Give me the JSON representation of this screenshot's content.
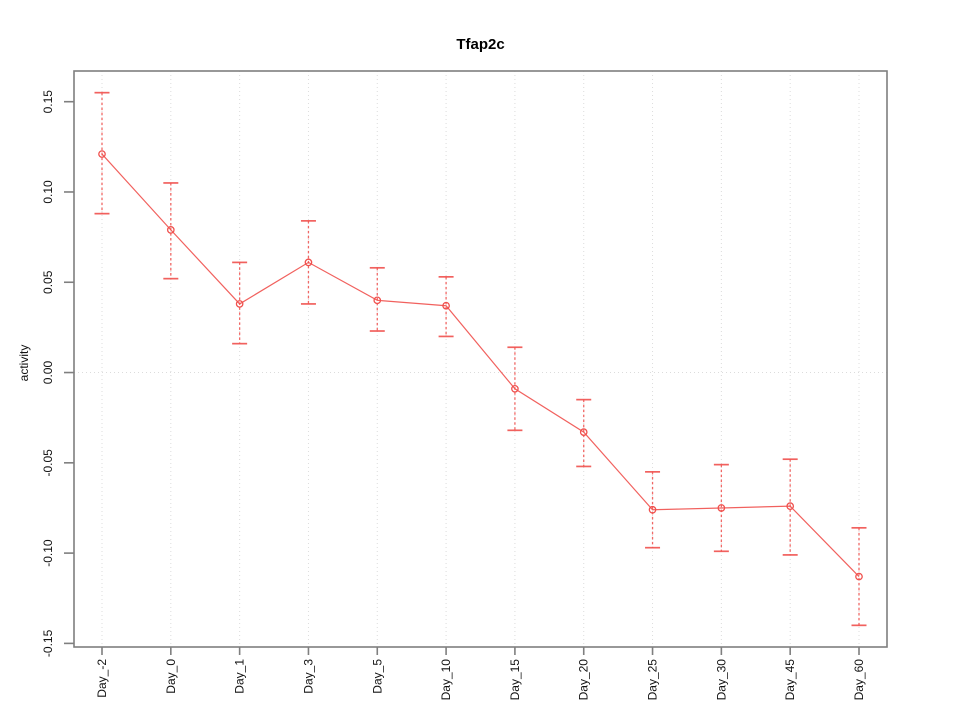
{
  "chart_data": {
    "type": "line",
    "title": "Tfap2c",
    "xlabel": "",
    "ylabel": "activity",
    "categories": [
      "Day_-2",
      "Day_0",
      "Day_1",
      "Day_3",
      "Day_5",
      "Day_10",
      "Day_15",
      "Day_20",
      "Day_25",
      "Day_30",
      "Day_45",
      "Day_60"
    ],
    "series": [
      {
        "values": [
          0.121,
          0.079,
          0.038,
          0.061,
          0.04,
          0.037,
          -0.009,
          -0.033,
          -0.076,
          -0.075,
          -0.074,
          -0.113
        ],
        "error_high": [
          0.155,
          0.105,
          0.061,
          0.084,
          0.058,
          0.053,
          0.014,
          -0.015,
          -0.055,
          -0.051,
          -0.048,
          -0.086
        ],
        "error_low": [
          0.088,
          0.052,
          0.016,
          0.038,
          0.023,
          0.02,
          -0.032,
          -0.052,
          -0.097,
          -0.099,
          -0.101,
          -0.14
        ]
      }
    ],
    "marker": "open-circle",
    "error_bar_style": "dashed-stem-with-caps",
    "ylim": [
      -0.152,
      0.167
    ],
    "yticks": [
      0.15,
      0.1,
      0.05,
      0.0,
      -0.05,
      -0.1,
      -0.15
    ],
    "ytick_labels": [
      "0.15",
      "0.10",
      "0.05",
      "0.00",
      "-0.05",
      "-0.10",
      "-0.15"
    ],
    "grid": {
      "vertical_at_categories": true,
      "horizontal_at_zero": true,
      "style": "dotted"
    },
    "legend": "none",
    "colors": {
      "series": "#f0504d",
      "grid": "#dcdcdc",
      "frame": "#7f7f7f",
      "text": "#111111",
      "background": "#ffffff"
    }
  }
}
